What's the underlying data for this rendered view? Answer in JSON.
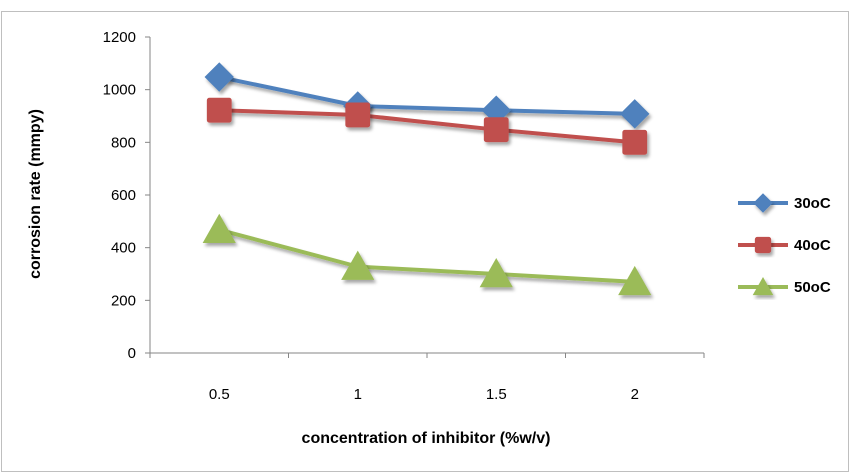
{
  "chart_data": {
    "type": "line",
    "title": "",
    "xlabel": "concentration of inhibitor (%w/v)",
    "ylabel": "corrosion rate (mmpy)",
    "categories": [
      "0.5",
      "1",
      "1.5",
      "2"
    ],
    "ylim": [
      0,
      1200
    ],
    "yticks": [
      0,
      200,
      400,
      600,
      800,
      1000,
      1200
    ],
    "grid": false,
    "legend_position": "right",
    "series": [
      {
        "name": "30oC",
        "values": [
          1048,
          938,
          922,
          908
        ],
        "color": "#4f81bd",
        "marker": "diamond"
      },
      {
        "name": "40oC",
        "values": [
          922,
          904,
          848,
          800
        ],
        "color": "#c0504d",
        "marker": "square"
      },
      {
        "name": "50oC",
        "values": [
          468,
          328,
          300,
          270
        ],
        "color": "#9bbb59",
        "marker": "triangle"
      }
    ]
  }
}
